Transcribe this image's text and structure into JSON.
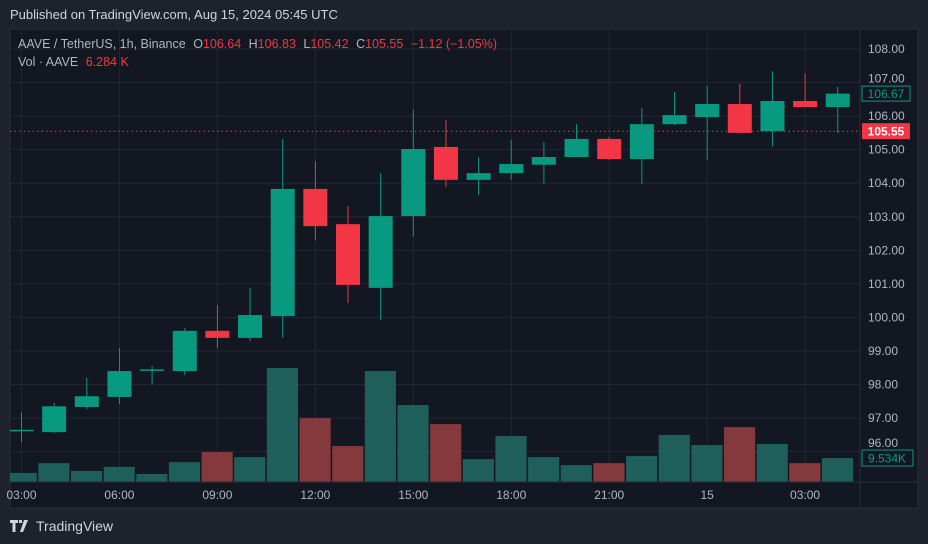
{
  "header": {
    "published": "Published on TradingView.com, Aug 15, 2024 05:45 UTC"
  },
  "legend": {
    "symbol": "AAVE / TetherUS, 1h, Binance",
    "o_label": "O",
    "o": "106.64",
    "h_label": "H",
    "h": "106.83",
    "l_label": "L",
    "l": "105.42",
    "c_label": "C",
    "c": "105.55",
    "change": "−1.12 (−1.05%)",
    "vol_label": "Vol · AAVE",
    "vol": "6.284 K"
  },
  "footer": {
    "brand": "TradingView"
  },
  "colors": {
    "up": "#089981",
    "down": "#f23645",
    "vol_up": "#1e5f5b",
    "vol_down": "#843a3d",
    "bg": "#131722",
    "grid": "#232632"
  },
  "chart_data": {
    "type": "candlestick",
    "ylim": [
      95.6,
      108.6
    ],
    "price_ticks": [
      "108.00",
      "107.00",
      "106.00",
      "105.00",
      "104.00",
      "103.00",
      "102.00",
      "101.00",
      "100.00",
      "99.00",
      "98.00",
      "97.00",
      "96.00"
    ],
    "time_ticks": [
      {
        "index": 0,
        "label": "03:00"
      },
      {
        "index": 3,
        "label": "06:00"
      },
      {
        "index": 6,
        "label": "09:00"
      },
      {
        "index": 9,
        "label": "12:00"
      },
      {
        "index": 12,
        "label": "15:00"
      },
      {
        "index": 15,
        "label": "18:00"
      },
      {
        "index": 18,
        "label": "21:00"
      },
      {
        "index": 21,
        "label": "15"
      },
      {
        "index": 24,
        "label": "03:00"
      }
    ],
    "last_price_label": "105.55",
    "current_price_label": "106.67",
    "volume_label": "9.534K",
    "candles": [
      {
        "o": 96.62,
        "h": 97.17,
        "l": 96.28,
        "c": 96.65,
        "v": 3.6
      },
      {
        "o": 96.58,
        "h": 97.45,
        "l": 96.55,
        "c": 97.35,
        "v": 7.5
      },
      {
        "o": 97.33,
        "h": 98.2,
        "l": 97.27,
        "c": 97.65,
        "v": 4.4
      },
      {
        "o": 97.63,
        "h": 99.09,
        "l": 97.42,
        "c": 98.4,
        "v": 6.0
      },
      {
        "o": 98.42,
        "h": 98.55,
        "l": 98.0,
        "c": 98.45,
        "v": 3.2
      },
      {
        "o": 98.4,
        "h": 99.68,
        "l": 98.28,
        "c": 99.6,
        "v": 7.9
      },
      {
        "o": 99.6,
        "h": 100.37,
        "l": 99.09,
        "c": 99.39,
        "v": 11.9
      },
      {
        "o": 99.39,
        "h": 100.88,
        "l": 99.3,
        "c": 100.07,
        "v": 9.9
      },
      {
        "o": 100.04,
        "h": 105.32,
        "l": 99.39,
        "c": 103.83,
        "v": 45.3
      },
      {
        "o": 103.83,
        "h": 104.66,
        "l": 102.3,
        "c": 102.72,
        "v": 25.4
      },
      {
        "o": 102.78,
        "h": 103.32,
        "l": 100.43,
        "c": 100.97,
        "v": 14.3
      },
      {
        "o": 100.88,
        "h": 104.3,
        "l": 99.92,
        "c": 103.02,
        "v": 44.1
      },
      {
        "o": 103.02,
        "h": 106.2,
        "l": 102.4,
        "c": 105.02,
        "v": 30.6
      },
      {
        "o": 105.08,
        "h": 105.88,
        "l": 103.89,
        "c": 104.1,
        "v": 23.0
      },
      {
        "o": 104.1,
        "h": 104.78,
        "l": 103.65,
        "c": 104.3,
        "v": 9.1
      },
      {
        "o": 104.3,
        "h": 105.29,
        "l": 104.1,
        "c": 104.57,
        "v": 18.3
      },
      {
        "o": 104.55,
        "h": 105.23,
        "l": 103.98,
        "c": 104.78,
        "v": 9.9
      },
      {
        "o": 104.78,
        "h": 105.76,
        "l": 104.78,
        "c": 105.32,
        "v": 6.7
      },
      {
        "o": 105.32,
        "h": 105.38,
        "l": 104.69,
        "c": 104.72,
        "v": 7.5
      },
      {
        "o": 104.72,
        "h": 106.24,
        "l": 103.98,
        "c": 105.76,
        "v": 10.3
      },
      {
        "o": 105.76,
        "h": 106.72,
        "l": 105.73,
        "c": 106.03,
        "v": 18.7
      },
      {
        "o": 105.97,
        "h": 106.9,
        "l": 104.69,
        "c": 106.36,
        "v": 14.7
      },
      {
        "o": 106.36,
        "h": 106.96,
        "l": 105.5,
        "c": 105.5,
        "v": 21.8
      },
      {
        "o": 105.55,
        "h": 107.34,
        "l": 105.1,
        "c": 106.45,
        "v": 15.1
      },
      {
        "o": 106.45,
        "h": 107.28,
        "l": 106.27,
        "c": 106.27,
        "v": 7.5
      },
      {
        "o": 106.27,
        "h": 106.87,
        "l": 105.5,
        "c": 106.67,
        "v": 9.534
      }
    ]
  }
}
